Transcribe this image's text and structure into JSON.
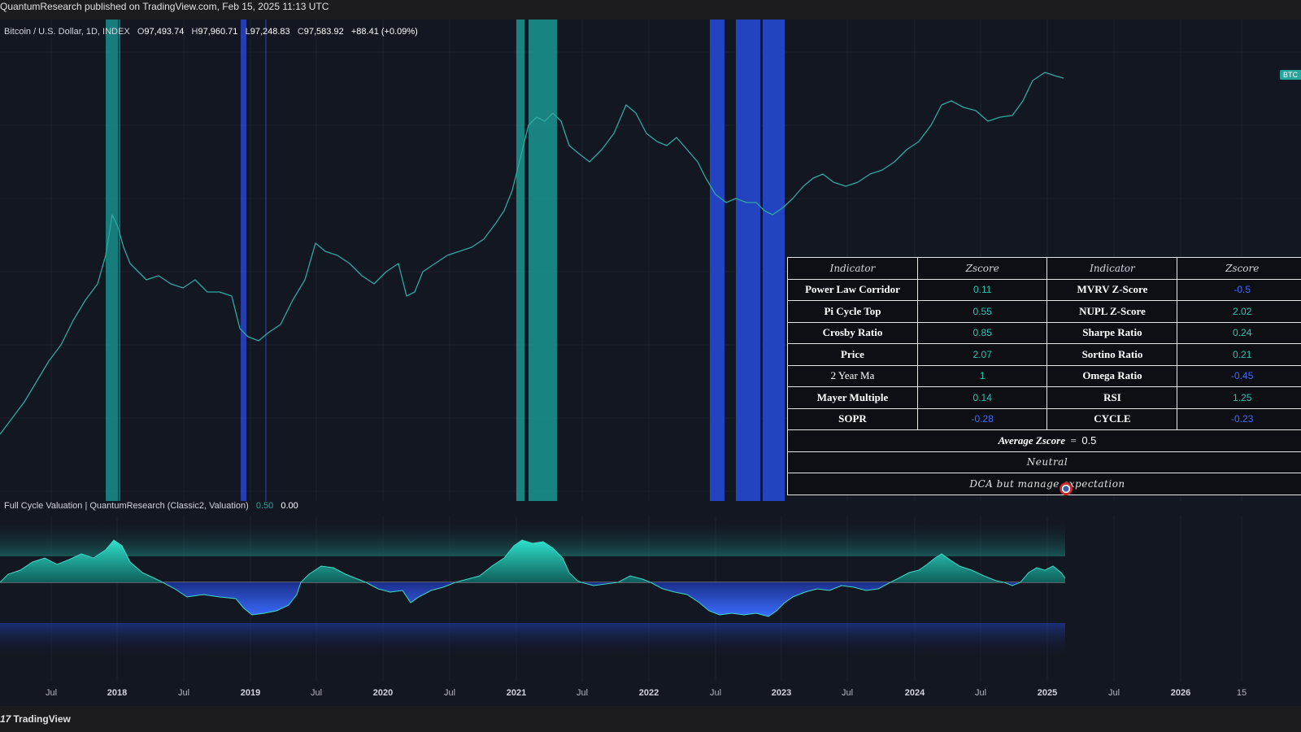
{
  "publisher_line": "QuantumResearch published on TradingView.com, Feb 15, 2025 11:13 UTC",
  "legend": {
    "symbol": "Bitcoin / U.S. Dollar, 1D, INDEX",
    "open_key": "O",
    "open": "97,493.74",
    "high_key": "H",
    "high": "97,960.71",
    "low_key": "L",
    "low": "97,248.83",
    "close_key": "C",
    "close": "97,583.92",
    "change": "+88.41 (+0.09%)"
  },
  "price_tag": "BTC",
  "indicator_legend": {
    "title": "Full Cycle Valuation | QuantumResearch (Classic2, Valuation)",
    "value1": "0.50",
    "value2": "0.00"
  },
  "table": {
    "headers": [
      "Indicator",
      "Zscore",
      "Indicator",
      "Zscore"
    ],
    "rows": [
      {
        "a": "Power Law Corridor",
        "az": "0.11",
        "b": "MVRV Z-Score",
        "bz": "-0.5"
      },
      {
        "a": "Pi Cycle Top",
        "az": "0.55",
        "b": "NUPL Z-Score",
        "bz": "2.02"
      },
      {
        "a": "Crosby Ratio",
        "az": "0.85",
        "b": "Sharpe Ratio",
        "bz": "0.24"
      },
      {
        "a": "Price",
        "az": "2.07",
        "b": "Sortino Ratio",
        "bz": "0.21"
      },
      {
        "a": "2 Year Ma",
        "az": "1",
        "b": "Omega Ratio",
        "bz": "-0.45"
      },
      {
        "a": "Mayer Multiple",
        "az": "0.14",
        "b": "RSI",
        "bz": "1.25"
      },
      {
        "a": "SOPR",
        "az": "-0.28",
        "b": "CYCLE",
        "bz": "-0.23"
      }
    ],
    "average_label": "Average Zscore",
    "average_eq": "=",
    "average_value": "0.5",
    "state": "Neutral",
    "advice": "DCA but manage expectation"
  },
  "x_axis": [
    "Jul",
    "2018",
    "Jul",
    "2019",
    "Jul",
    "2020",
    "Jul",
    "2021",
    "Jul",
    "2022",
    "Jul",
    "2023",
    "Jul",
    "2024",
    "Jul",
    "2025",
    "Jul",
    "2026",
    "15"
  ],
  "footer": {
    "logo_mark": "17",
    "brand": "TradingView"
  },
  "colors": {
    "background": "#131722",
    "teal": "#26a69a",
    "blue": "#2a4fd6",
    "positive_z": "#26c6b3",
    "negative_z": "#3d6bff"
  }
}
